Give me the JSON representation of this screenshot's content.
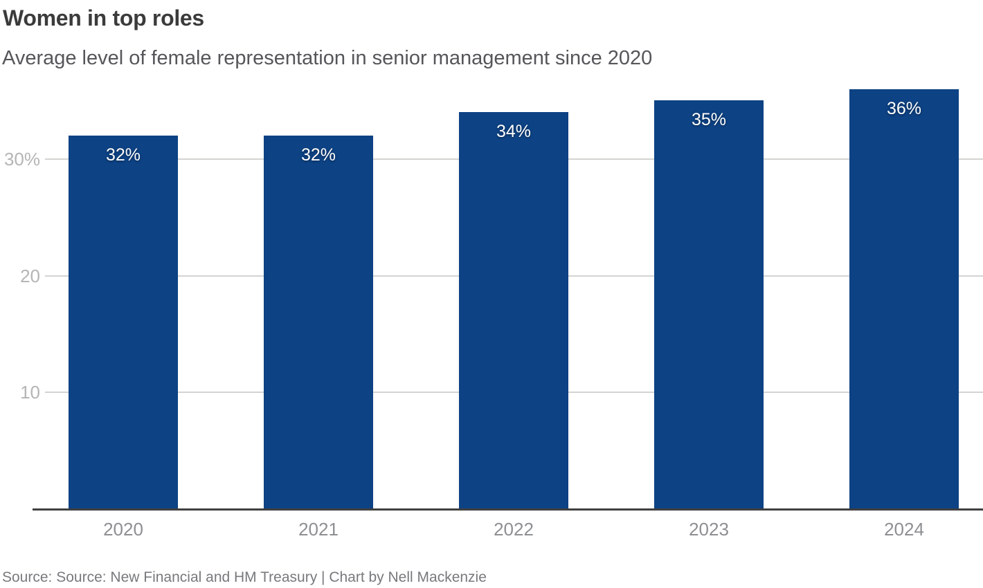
{
  "header": {
    "title": "Women in top roles",
    "subtitle": "Average level of female representation in senior management since 2020"
  },
  "chart_data": {
    "type": "bar",
    "categories": [
      "2020",
      "2021",
      "2022",
      "2023",
      "2024"
    ],
    "values": [
      32,
      32,
      34,
      35,
      36
    ],
    "bar_labels": [
      "32%",
      "32%",
      "34%",
      "35%",
      "36%"
    ],
    "title": "Women in top roles",
    "xlabel": "",
    "ylabel": "",
    "ylim": [
      0,
      36.5
    ],
    "yticks": [
      {
        "value": 30,
        "label": "30%"
      },
      {
        "value": 20,
        "label": "20"
      },
      {
        "value": 10,
        "label": "10"
      }
    ],
    "grid": true,
    "legend": "none",
    "bar_color": "#0d4284",
    "bar_label_color": "#ffffff"
  },
  "footer": {
    "source": "Source: Source: New Financial and HM Treasury | Chart by Nell Mackenzie"
  },
  "colors": {
    "bar": "#0d4284",
    "gridline": "#d3d3d2",
    "axis_line": "#3f3f3f",
    "title_text": "#3b3b3b",
    "subtitle_text": "#55565a",
    "ytick_text": "#b5b5b5",
    "xtick_text": "#8d8f92",
    "source_text": "#77797c",
    "background": "#ffffff"
  }
}
